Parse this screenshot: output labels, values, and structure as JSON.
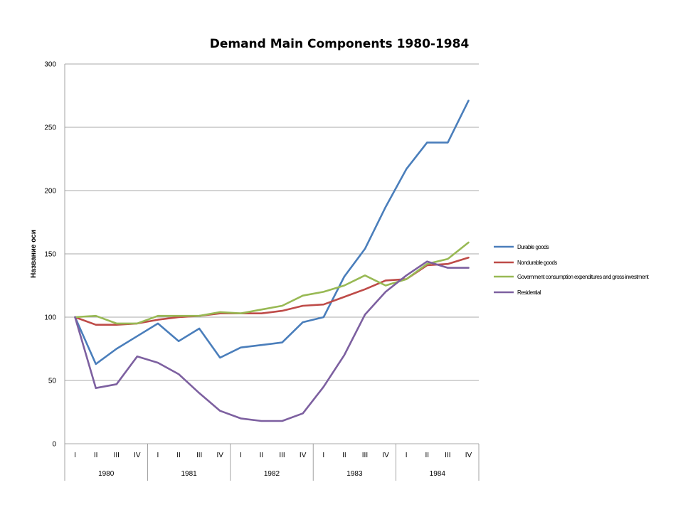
{
  "chart_data": {
    "type": "line",
    "title": "Demand Main Components 1980-1984",
    "ylabel": "Название оси",
    "xlabel": "",
    "ylim": [
      0,
      300
    ],
    "yticks": [
      0,
      50,
      100,
      150,
      200,
      250,
      300
    ],
    "grid": true,
    "legend_position": "right",
    "quarters": [
      "I",
      "II",
      "III",
      "IV",
      "I",
      "II",
      "III",
      "IV",
      "I",
      "II",
      "III",
      "IV",
      "I",
      "II",
      "III",
      "IV",
      "I",
      "II",
      "III",
      "IV"
    ],
    "years": [
      "1980",
      "1981",
      "1982",
      "1983",
      "1984"
    ],
    "series": [
      {
        "name": "Durable goods",
        "color": "#4a7ebb",
        "values": [
          100,
          63,
          75,
          85,
          95,
          81,
          91,
          68,
          76,
          78,
          80,
          96,
          100,
          132,
          154,
          187,
          217,
          238,
          238,
          271
        ]
      },
      {
        "name": "Nondurable goods",
        "color": "#be4b48",
        "values": [
          100,
          94,
          94,
          95,
          98,
          100,
          101,
          103,
          103,
          103,
          105,
          109,
          110,
          116,
          122,
          129,
          130,
          141,
          142,
          147
        ]
      },
      {
        "name": "Government consumption expenditures and gross investment",
        "color": "#98b954",
        "values": [
          100,
          101,
          95,
          95,
          101,
          101,
          101,
          104,
          103,
          106,
          109,
          117,
          120,
          125,
          133,
          125,
          130,
          142,
          146,
          159
        ]
      },
      {
        "name": "Residential",
        "color": "#7d60a0",
        "values": [
          100,
          44,
          47,
          69,
          64,
          55,
          40,
          26,
          20,
          18,
          18,
          24,
          45,
          70,
          102,
          120,
          133,
          144,
          139,
          139
        ]
      }
    ]
  }
}
